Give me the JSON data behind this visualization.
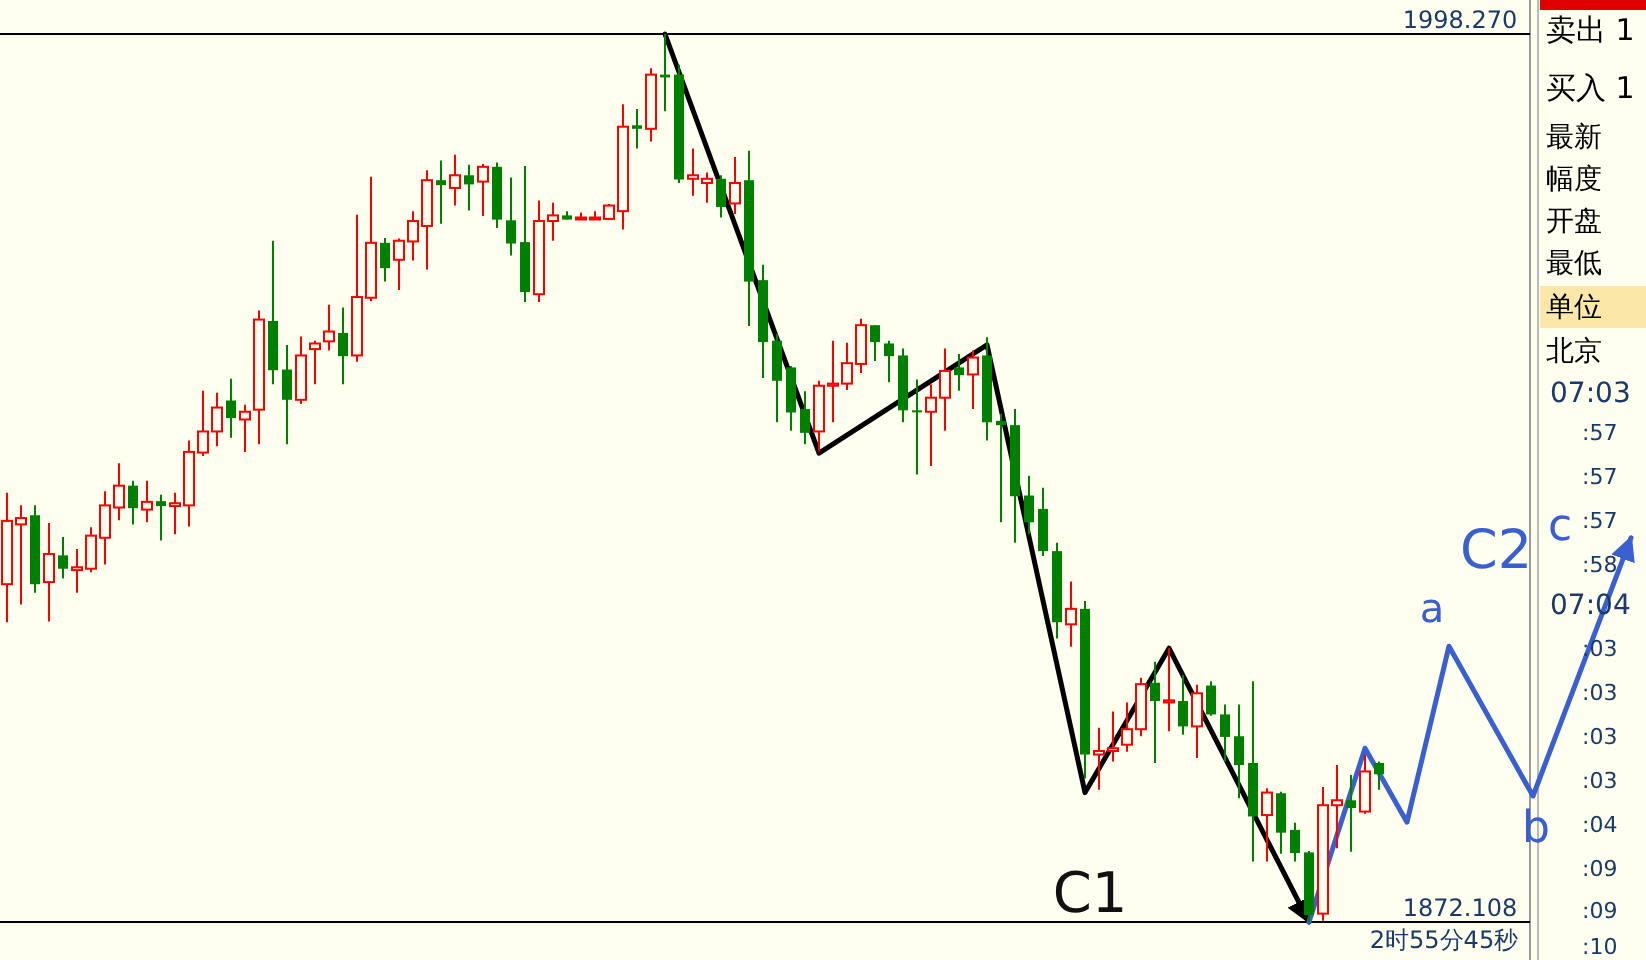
{
  "chart_data": {
    "type": "candlestick",
    "tick_labels": "y",
    "grid": "y",
    "ylim": [
      1872.108,
      1998.27
    ],
    "yticks": [
      {
        "value": 1998.27,
        "label": "1998.270"
      },
      {
        "value": 1872.108,
        "label": "1872.108"
      }
    ],
    "categories": [
      null,
      null,
      null,
      null,
      null,
      null,
      null,
      null,
      null,
      null,
      null,
      null,
      null,
      null,
      null,
      null,
      null,
      null,
      null,
      null,
      null,
      null,
      null,
      null,
      null,
      null,
      null,
      null,
      null,
      null,
      null,
      null,
      null,
      null,
      null,
      null,
      null,
      null,
      null,
      null,
      null,
      null,
      null,
      null,
      null,
      null,
      null,
      null,
      null,
      null,
      null,
      null,
      null,
      null,
      null,
      null,
      null,
      null,
      null,
      null,
      null,
      null,
      null,
      null,
      null,
      null,
      null,
      null,
      null,
      null,
      null,
      null,
      null,
      null,
      null,
      null,
      null,
      null,
      null,
      null,
      null,
      null,
      null,
      null,
      null,
      null,
      null,
      null,
      null,
      null,
      null,
      null,
      null,
      null,
      null,
      null,
      null,
      null,
      null,
      null,
      null,
      null,
      null,
      null,
      null,
      null,
      null,
      null,
      null,
      null,
      null,
      null,
      null,
      null,
      null,
      null,
      null,
      null
    ],
    "ohlc": [
      [
        1920.1,
        1933.1,
        1914.7,
        1929.1
      ],
      [
        1928.6,
        1931.3,
        1917.2,
        1929.5
      ],
      [
        1929.9,
        1931.3,
        1918.9,
        1920.1
      ],
      [
        1920.4,
        1928.8,
        1914.8,
        1924.4
      ],
      [
        1924.2,
        1926.8,
        1920.9,
        1922.3
      ],
      [
        1922.1,
        1925.1,
        1918.9,
        1922.5
      ],
      [
        1922.3,
        1928.2,
        1921.8,
        1927.0
      ],
      [
        1926.7,
        1933.3,
        1922.9,
        1931.3
      ],
      [
        1931.0,
        1937.3,
        1929.2,
        1934.1
      ],
      [
        1934.1,
        1934.8,
        1928.6,
        1930.9
      ],
      [
        1930.7,
        1934.8,
        1928.9,
        1931.8
      ],
      [
        1931.9,
        1932.8,
        1926.3,
        1931.2
      ],
      [
        1931.2,
        1933.1,
        1927.2,
        1931.6
      ],
      [
        1931.3,
        1940.5,
        1928.3,
        1938.9
      ],
      [
        1938.8,
        1947.6,
        1938.3,
        1941.8
      ],
      [
        1941.8,
        1947.3,
        1939.7,
        1945.2
      ],
      [
        1946.2,
        1949.3,
        1940.9,
        1943.7
      ],
      [
        1943.5,
        1945.6,
        1938.9,
        1944.6
      ],
      [
        1944.9,
        1959.0,
        1940.0,
        1957.7
      ],
      [
        1957.5,
        1968.9,
        1948.5,
        1950.5
      ],
      [
        1950.6,
        1954.1,
        1940.0,
        1946.3
      ],
      [
        1946.3,
        1955.3,
        1945.7,
        1952.6
      ],
      [
        1953.5,
        1954.7,
        1948.5,
        1954.3
      ],
      [
        1954.6,
        1959.8,
        1953.3,
        1956.0
      ],
      [
        1955.8,
        1959.4,
        1948.5,
        1952.5
      ],
      [
        1952.6,
        1972.6,
        1951.7,
        1960.9
      ],
      [
        1960.8,
        1978.0,
        1960.3,
        1968.6
      ],
      [
        1968.6,
        1969.3,
        1963.1,
        1965.0
      ],
      [
        1966.2,
        1969.2,
        1961.9,
        1968.9
      ],
      [
        1968.8,
        1973.1,
        1966.1,
        1971.7
      ],
      [
        1971.0,
        1978.9,
        1964.8,
        1977.5
      ],
      [
        1977.5,
        1980.3,
        1971.3,
        1976.8
      ],
      [
        1976.4,
        1981.1,
        1973.9,
        1978.2
      ],
      [
        1978.2,
        1979.7,
        1973.2,
        1976.9
      ],
      [
        1977.3,
        1979.8,
        1972.4,
        1979.4
      ],
      [
        1979.4,
        1980.0,
        1970.7,
        1971.9
      ],
      [
        1971.8,
        1977.9,
        1966.8,
        1968.5
      ],
      [
        1968.7,
        1979.5,
        1960.2,
        1961.6
      ],
      [
        1961.3,
        1974.6,
        1960.2,
        1971.7
      ],
      [
        1971.7,
        1974.3,
        1968.9,
        1972.5
      ],
      [
        1972.5,
        1973.1,
        1971.9,
        1971.9
      ],
      [
        1972.2,
        1972.9,
        1972.1,
        1972.2
      ],
      [
        1972.2,
        1973.1,
        1972.1,
        1972.2
      ],
      [
        1972.0,
        1974.1,
        1971.9,
        1973.9
      ],
      [
        1973.1,
        1988.3,
        1970.5,
        1985.1
      ],
      [
        1985.3,
        1987.6,
        1982.0,
        1984.8
      ],
      [
        1984.8,
        1993.4,
        1983.0,
        1992.5
      ],
      [
        1992.5,
        1998.27,
        1987.3,
        1992.1
      ],
      [
        1992.5,
        1993.9,
        1977.1,
        1977.6
      ],
      [
        1977.7,
        1982.0,
        1975.3,
        1978.2
      ],
      [
        1977.1,
        1978.6,
        1974.3,
        1977.7
      ],
      [
        1977.7,
        1978.2,
        1972.2,
        1973.7
      ],
      [
        1974.2,
        1980.8,
        1972.7,
        1977.1
      ],
      [
        1977.5,
        1981.7,
        1956.8,
        1963.1
      ],
      [
        1963.3,
        1965.5,
        1949.4,
        1954.5
      ],
      [
        1954.7,
        1955.7,
        1943.1,
        1949.0
      ],
      [
        1950.9,
        1951.1,
        1941.9,
        1944.5
      ],
      [
        1945.0,
        1947.5,
        1940.0,
        1941.6
      ],
      [
        1941.8,
        1949.0,
        1939.0,
        1948.3
      ],
      [
        1948.3,
        1954.7,
        1943.1,
        1948.6
      ],
      [
        1948.6,
        1954.4,
        1947.7,
        1951.5
      ],
      [
        1951.4,
        1957.8,
        1950.1,
        1956.9
      ],
      [
        1956.9,
        1956.9,
        1951.8,
        1954.5
      ],
      [
        1954.3,
        1954.7,
        1948.8,
        1952.5
      ],
      [
        1952.6,
        1953.6,
        1943.1,
        1944.8
      ],
      [
        1944.8,
        1949.2,
        1935.7,
        1944.6
      ],
      [
        1944.6,
        1948.5,
        1936.9,
        1946.6
      ],
      [
        1946.6,
        1953.6,
        1941.9,
        1950.4
      ],
      [
        1950.9,
        1952.8,
        1947.6,
        1949.8
      ],
      [
        1949.9,
        1953.3,
        1945.0,
        1952.3
      ],
      [
        1952.6,
        1955.2,
        1940.5,
        1943.1
      ],
      [
        1943.3,
        1944.3,
        1928.9,
        1942.7
      ],
      [
        1942.7,
        1945.0,
        1926.0,
        1932.6
      ],
      [
        1932.7,
        1935.5,
        1927.2,
        1928.9
      ],
      [
        1930.8,
        1933.8,
        1924.1,
        1924.8
      ],
      [
        1924.8,
        1926.0,
        1912.4,
        1914.7
      ],
      [
        1914.4,
        1920.5,
        1911.2,
        1916.6
      ],
      [
        1916.6,
        1917.7,
        1892.5,
        1895.9
      ],
      [
        1895.9,
        1899.7,
        1890.9,
        1896.4
      ],
      [
        1896.4,
        1902.0,
        1894.9,
        1896.8
      ],
      [
        1897.3,
        1903.3,
        1896.3,
        1899.5
      ],
      [
        1899.5,
        1906.8,
        1898.5,
        1905.9
      ],
      [
        1906.1,
        1909.1,
        1894.7,
        1903.5
      ],
      [
        1903.3,
        1911.0,
        1899.2,
        1903.6
      ],
      [
        1903.5,
        1907.2,
        1898.7,
        1899.9
      ],
      [
        1899.9,
        1905.8,
        1895.4,
        1904.6
      ],
      [
        1905.7,
        1906.3,
        1901.4,
        1901.6
      ],
      [
        1901.6,
        1903.0,
        1894.9,
        1898.4
      ],
      [
        1898.5,
        1903.0,
        1889.7,
        1894.4
      ],
      [
        1894.7,
        1906.3,
        1880.7,
        1887.1
      ],
      [
        1887.3,
        1891.1,
        1880.7,
        1890.5
      ],
      [
        1890.4,
        1890.6,
        1881.8,
        1884.8
      ],
      [
        1885.2,
        1886.2,
        1880.7,
        1881.9
      ],
      [
        1882.0,
        1882.2,
        1872.108,
        1873.1
      ],
      [
        1873.3,
        1891.3,
        1872.3,
        1888.7
      ],
      [
        1888.7,
        1894.4,
        1882.6,
        1889.4
      ],
      [
        1889.4,
        1893.0,
        1882.1,
        1888.3
      ],
      [
        1887.8,
        1895.9,
        1887.5,
        1893.5
      ],
      [
        1894.7,
        1894.9,
        1890.9,
        1893.1
      ],
      null,
      null,
      null,
      null,
      null,
      null,
      null,
      null,
      null,
      null,
      null,
      null,
      null,
      null,
      null,
      null,
      null,
      null,
      null
    ],
    "series": [
      {
        "type": "line",
        "color": "#000000",
        "values": [
          null,
          null,
          null,
          null,
          null,
          null,
          null,
          null,
          null,
          null,
          null,
          null,
          null,
          null,
          null,
          null,
          null,
          null,
          null,
          null,
          null,
          null,
          null,
          null,
          null,
          null,
          null,
          null,
          null,
          null,
          null,
          null,
          null,
          null,
          null,
          null,
          null,
          null,
          null,
          null,
          null,
          null,
          null,
          null,
          null,
          null,
          null,
          1998.27,
          null,
          null,
          null,
          null,
          null,
          null,
          null,
          null,
          null,
          null,
          1938.7,
          null,
          null,
          null,
          null,
          null,
          null,
          null,
          null,
          null,
          null,
          null,
          1954.1,
          null,
          null,
          null,
          null,
          null,
          null,
          1890.5,
          null,
          null,
          null,
          null,
          null,
          1911.0,
          null,
          null,
          null,
          null,
          null,
          null,
          null,
          null,
          null,
          1872.108,
          null,
          null,
          null,
          null,
          null,
          null,
          null,
          null,
          null,
          null,
          null,
          null,
          null,
          null,
          null,
          null,
          null,
          null,
          null,
          null,
          null,
          null,
          null,
          null
        ]
      },
      {
        "type": "line",
        "color": "#3a5fd0",
        "values": [
          null,
          null,
          null,
          null,
          null,
          null,
          null,
          null,
          null,
          null,
          null,
          null,
          null,
          null,
          null,
          null,
          null,
          null,
          null,
          null,
          null,
          null,
          null,
          null,
          null,
          null,
          null,
          null,
          null,
          null,
          null,
          null,
          null,
          null,
          null,
          null,
          null,
          null,
          null,
          null,
          null,
          null,
          null,
          null,
          null,
          null,
          null,
          null,
          null,
          null,
          null,
          null,
          null,
          null,
          null,
          null,
          null,
          null,
          null,
          null,
          null,
          null,
          null,
          null,
          null,
          null,
          null,
          null,
          null,
          null,
          null,
          null,
          null,
          null,
          null,
          null,
          null,
          null,
          null,
          null,
          null,
          null,
          null,
          null,
          null,
          null,
          null,
          null,
          null,
          null,
          null,
          null,
          null,
          1872.108,
          null,
          null,
          null,
          1896.8,
          null,
          null,
          1886.3,
          null,
          null,
          1911.3,
          null,
          null,
          null,
          null,
          null,
          1890.0,
          null,
          null,
          null,
          null,
          null,
          null,
          1926.7,
          null
        ]
      }
    ],
    "annotations": [
      "C1",
      "C2",
      "a",
      "b",
      "c",
      "2时55分45秒",
      "卖出 1",
      "买入 1",
      "最新",
      "幅度",
      "开盘",
      "最低",
      "单位",
      "北京",
      "07:03",
      ":57",
      ":57",
      ":57",
      ":58",
      "07:04",
      ":03",
      ":03",
      ":03",
      ":03",
      ":04",
      ":09",
      ":09",
      ":10"
    ]
  }
}
